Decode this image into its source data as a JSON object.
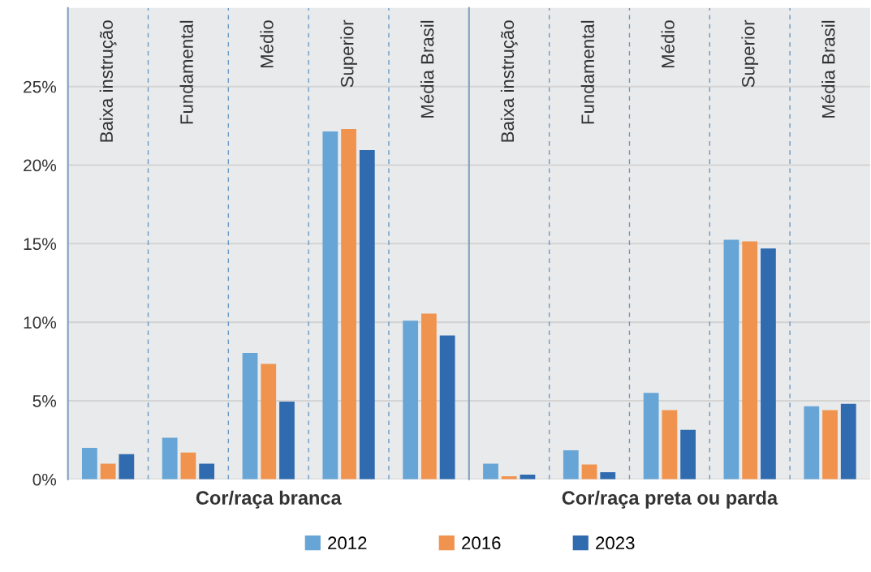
{
  "chart_data": [
    {
      "type": "bar",
      "xlabel": "Cor/raça branca",
      "categories": [
        "Baixa instrução",
        "Fundamental",
        "Médio",
        "Superior",
        "Média Brasil"
      ],
      "series": [
        {
          "name": "2012",
          "color": "#66a5d6",
          "values": [
            2.0,
            2.65,
            8.05,
            22.15,
            10.1
          ]
        },
        {
          "name": "2016",
          "color": "#f0934f",
          "values": [
            1.0,
            1.7,
            7.35,
            22.3,
            10.55
          ]
        },
        {
          "name": "2023",
          "color": "#306bb0",
          "values": [
            1.6,
            1.0,
            4.95,
            20.95,
            9.15
          ]
        }
      ],
      "ylim": [
        0,
        30
      ],
      "yticks": [
        {
          "value": 0,
          "label": "0%"
        },
        {
          "value": 5,
          "label": "5%"
        },
        {
          "value": 10,
          "label": "10%"
        },
        {
          "value": 15,
          "label": "15%"
        },
        {
          "value": 20,
          "label": "20%"
        },
        {
          "value": 25,
          "label": "25%"
        }
      ],
      "grid": "y",
      "legend": "bottom"
    },
    {
      "type": "bar",
      "xlabel": "Cor/raça preta ou parda",
      "categories": [
        "Baixa instrução",
        "Fundamental",
        "Médio",
        "Superior",
        "Média Brasil"
      ],
      "series": [
        {
          "name": "2012",
          "color": "#66a5d6",
          "values": [
            1.0,
            1.85,
            5.5,
            15.25,
            4.65
          ]
        },
        {
          "name": "2016",
          "color": "#f0934f",
          "values": [
            0.2,
            0.95,
            4.4,
            15.15,
            4.4
          ]
        },
        {
          "name": "2023",
          "color": "#306bb0",
          "values": [
            0.3,
            0.45,
            3.15,
            14.7,
            4.8
          ]
        }
      ],
      "ylim": [
        0,
        30
      ],
      "yticks": [
        {
          "value": 0,
          "label": null
        },
        {
          "value": 5,
          "label": null
        },
        {
          "value": 10,
          "label": null
        },
        {
          "value": 15,
          "label": null
        },
        {
          "value": 20,
          "label": null
        },
        {
          "value": 25,
          "label": null
        }
      ],
      "tick_labels": "x",
      "grid": "y"
    }
  ]
}
